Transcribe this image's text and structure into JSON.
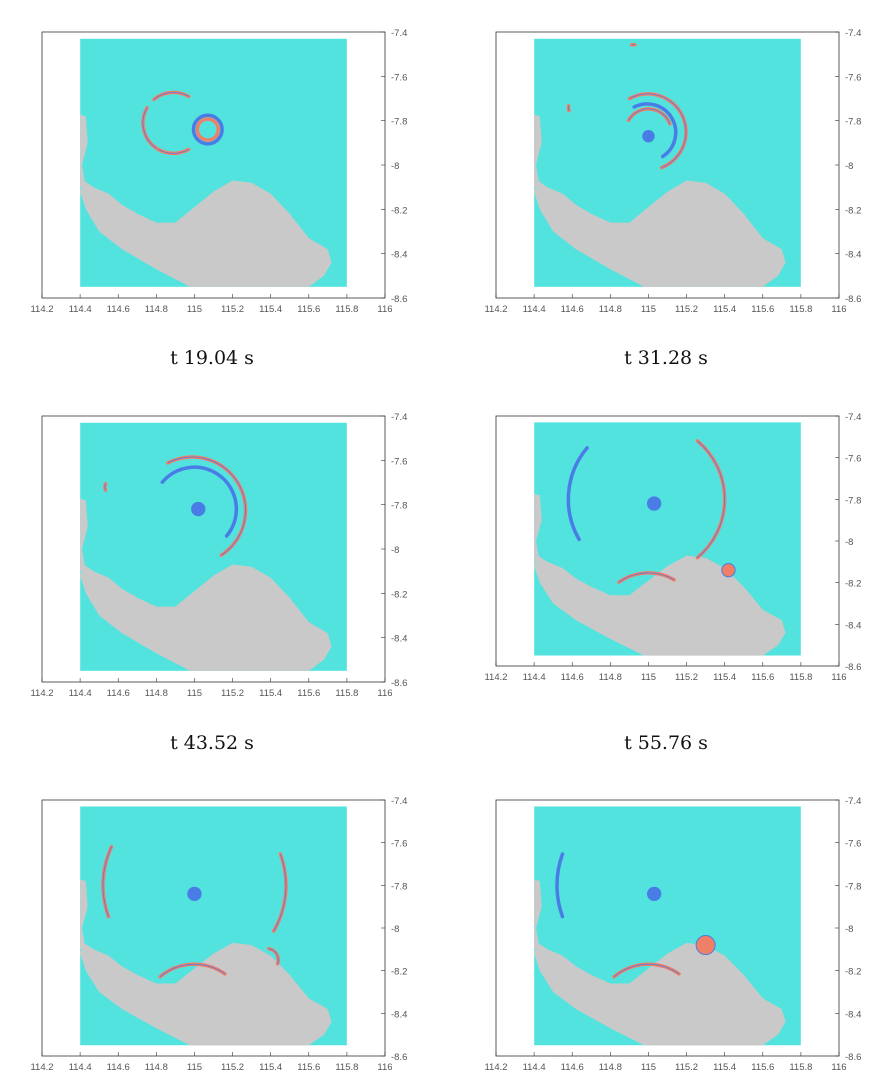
{
  "colors": {
    "sea": "#52e3df",
    "land": "#c9c9c9",
    "positive": "#f07f68",
    "negative": "#4a7ce6",
    "frame": "#333333",
    "tick_text": "#555555"
  },
  "chart_data": [
    {
      "type": "heatmap",
      "title": "",
      "xlabel": "",
      "ylabel": "",
      "x": {
        "ticks": [
          114.2,
          114.4,
          114.6,
          114.8,
          115,
          115.2,
          115.4,
          115.6,
          115.8,
          116
        ],
        "tick_labels": [
          "114.2",
          "114.4",
          "114.6",
          "114.8",
          "115",
          "115.2",
          "115.4",
          "115.6",
          "115.8",
          "116"
        ],
        "range": [
          114.2,
          116
        ]
      },
      "y": {
        "ticks": [
          -7.4,
          -7.6,
          -7.8,
          -8,
          -8.2,
          -8.4,
          -8.6
        ],
        "tick_labels": [
          "-7.4",
          "-7.6",
          "-7.8",
          "-8",
          "-8.2",
          "-8.4",
          "-8.6"
        ],
        "range": [
          -8.6,
          -7.4
        ],
        "axis_side": "right"
      },
      "domain_box": {
        "lon": [
          114.4,
          115.8
        ],
        "lat": [
          -8.55,
          -7.43
        ]
      },
      "features": [
        {
          "kind": "ring",
          "sign": "negative",
          "cx": 115.07,
          "cy": -7.84,
          "r": 0.075
        },
        {
          "kind": "ring",
          "sign": "positive",
          "cx": 115.07,
          "cy": -7.84,
          "r": 0.055
        },
        {
          "kind": "arc",
          "sign": "positive",
          "cx": 114.89,
          "cy": -7.81,
          "r": 0.16,
          "from": 150,
          "to": 240
        },
        {
          "kind": "arc",
          "sign": "positive",
          "cx": 114.89,
          "cy": -7.81,
          "r": 0.16,
          "from": 240,
          "to": 300
        },
        {
          "kind": "arc",
          "sign": "positive",
          "cx": 114.89,
          "cy": -7.81,
          "r": 0.16,
          "from": 60,
          "to": 130
        }
      ],
      "caption": "t  19.04 s"
    },
    {
      "type": "heatmap",
      "x": {
        "ticks": [
          114.2,
          114.4,
          114.6,
          114.8,
          115,
          115.2,
          115.4,
          115.6,
          115.8,
          116
        ],
        "tick_labels": [
          "114.2",
          "114.4",
          "114.6",
          "114.8",
          "115",
          "115.2",
          "115.4",
          "115.6",
          "115.8",
          "116"
        ],
        "range": [
          114.2,
          116
        ]
      },
      "y": {
        "ticks": [
          -7.4,
          -7.6,
          -7.8,
          -8,
          -8.2,
          -8.4,
          -8.6
        ],
        "tick_labels": [
          "-7.4",
          "-7.6",
          "-7.8",
          "-8",
          "-8.2",
          "-8.4",
          "-8.6"
        ],
        "range": [
          -8.6,
          -7.4
        ],
        "axis_side": "right"
      },
      "domain_box": {
        "lon": [
          114.4,
          115.8
        ],
        "lat": [
          -8.55,
          -7.43
        ]
      },
      "features": [
        {
          "kind": "arc",
          "sign": "positive",
          "cx": 115.0,
          "cy": -7.85,
          "r": 0.2,
          "from": -70,
          "to": 120
        },
        {
          "kind": "arc",
          "sign": "negative",
          "cx": 115.0,
          "cy": -7.85,
          "r": 0.15,
          "from": -60,
          "to": 120
        },
        {
          "kind": "arc",
          "sign": "positive",
          "cx": 115.0,
          "cy": -7.85,
          "r": 0.12,
          "from": 20,
          "to": 150
        },
        {
          "kind": "blob",
          "sign": "negative",
          "cx": 115.0,
          "cy": -7.87,
          "r": 0.03
        },
        {
          "kind": "arc",
          "sign": "positive",
          "cx": 114.92,
          "cy": -7.5,
          "r": 0.05,
          "from": 80,
          "to": 100
        },
        {
          "kind": "arc",
          "sign": "positive",
          "cx": 114.63,
          "cy": -7.74,
          "r": 0.05,
          "from": 170,
          "to": 200
        }
      ],
      "caption": "t  31.28 s"
    },
    {
      "type": "heatmap",
      "x": {
        "ticks": [
          114.2,
          114.4,
          114.6,
          114.8,
          115,
          115.2,
          115.4,
          115.6,
          115.8,
          116
        ],
        "tick_labels": [
          "114.2",
          "114.4",
          "114.6",
          "114.8",
          "115",
          "115.2",
          "115.4",
          "115.6",
          "115.8",
          "116"
        ],
        "range": [
          114.2,
          116
        ]
      },
      "y": {
        "ticks": [
          -7.4,
          -7.6,
          -7.8,
          -8,
          -8.2,
          -8.4,
          -8.6
        ],
        "tick_labels": [
          "-7.4",
          "-7.6",
          "-7.8",
          "-8",
          "-8.2",
          "-8.4",
          "-8.6"
        ],
        "range": [
          -8.6,
          -7.4
        ],
        "axis_side": "right"
      },
      "domain_box": {
        "lon": [
          114.4,
          115.8
        ],
        "lat": [
          -8.55,
          -7.43
        ]
      },
      "features": [
        {
          "kind": "arc",
          "sign": "positive",
          "cx": 115.0,
          "cy": -7.82,
          "r": 0.28,
          "from": -60,
          "to": 120
        },
        {
          "kind": "arc",
          "sign": "negative",
          "cx": 115.0,
          "cy": -7.82,
          "r": 0.22,
          "from": -40,
          "to": 140
        },
        {
          "kind": "blob",
          "sign": "negative",
          "cx": 115.02,
          "cy": -7.82,
          "r": 0.035
        },
        {
          "kind": "arc",
          "sign": "positive",
          "cx": 114.58,
          "cy": -7.72,
          "r": 0.05,
          "from": 160,
          "to": 200
        }
      ],
      "caption": "t  43.52 s"
    },
    {
      "type": "heatmap",
      "x": {
        "ticks": [
          114.2,
          114.4,
          114.6,
          114.8,
          115,
          115.2,
          115.4,
          115.6,
          115.8,
          116
        ],
        "tick_labels": [
          "114.2",
          "114.4",
          "114.6",
          "114.8",
          "115",
          "115.2",
          "115.4",
          "115.6",
          "115.8",
          "116"
        ],
        "range": [
          114.2,
          116
        ]
      },
      "y": {
        "ticks": [
          -7.4,
          -7.6,
          -7.8,
          -8,
          -8.2,
          -8.4,
          -8.6
        ],
        "tick_labels": [
          "-7.4",
          "-7.6",
          "-7.8",
          "-8",
          "-8.2",
          "-8.4",
          "-8.6"
        ],
        "range": [
          -8.6,
          -7.4
        ],
        "axis_side": "right"
      },
      "domain_box": {
        "lon": [
          114.4,
          115.8
        ],
        "lat": [
          -8.55,
          -7.43
        ]
      },
      "features": [
        {
          "kind": "arc",
          "sign": "positive",
          "cx": 115.0,
          "cy": -7.8,
          "r": 0.4,
          "from": -50,
          "to": 50
        },
        {
          "kind": "arc",
          "sign": "negative",
          "cx": 115.0,
          "cy": -7.8,
          "r": 0.42,
          "from": 140,
          "to": 210
        },
        {
          "kind": "blob",
          "sign": "negative",
          "cx": 115.03,
          "cy": -7.82,
          "r": 0.035
        },
        {
          "kind": "arc",
          "sign": "positive",
          "cx": 115.0,
          "cy": -8.4,
          "r": 0.27,
          "from": 60,
          "to": 125
        },
        {
          "kind": "blob",
          "sign": "positive",
          "cx": 115.42,
          "cy": -8.14,
          "r": 0.035
        }
      ],
      "caption": "t  55.76 s"
    },
    {
      "type": "heatmap",
      "x": {
        "ticks": [
          114.2,
          114.4,
          114.6,
          114.8,
          115,
          115.2,
          115.4,
          115.6,
          115.8,
          116
        ],
        "tick_labels": [
          "114.2",
          "114.4",
          "114.6",
          "114.8",
          "115",
          "115.2",
          "115.4",
          "115.6",
          "115.8",
          "116"
        ],
        "range": [
          114.2,
          116
        ]
      },
      "y": {
        "ticks": [
          -7.4,
          -7.6,
          -7.8,
          -8,
          -8.2,
          -8.4,
          -8.6
        ],
        "tick_labels": [
          "-7.4",
          "-7.6",
          "-7.8",
          "-8",
          "-8.2",
          "-8.4",
          "-8.6"
        ],
        "range": [
          -8.6,
          -7.4
        ],
        "axis_side": "right"
      },
      "domain_box": {
        "lon": [
          114.4,
          115.8
        ],
        "lat": [
          -8.55,
          -7.43
        ]
      },
      "features": [
        {
          "kind": "arc",
          "sign": "positive",
          "cx": 115.0,
          "cy": -7.8,
          "r": 0.48,
          "from": -30,
          "to": 20
        },
        {
          "kind": "arc",
          "sign": "positive",
          "cx": 115.0,
          "cy": -7.8,
          "r": 0.48,
          "from": 155,
          "to": 200
        },
        {
          "kind": "blob",
          "sign": "negative",
          "cx": 115.0,
          "cy": -7.84,
          "r": 0.035
        },
        {
          "kind": "arc",
          "sign": "positive",
          "cx": 115.0,
          "cy": -8.42,
          "r": 0.28,
          "from": 55,
          "to": 130
        },
        {
          "kind": "arc",
          "sign": "positive",
          "cx": 115.38,
          "cy": -8.15,
          "r": 0.06,
          "from": -20,
          "to": 80
        }
      ],
      "caption": ""
    },
    {
      "type": "heatmap",
      "x": {
        "ticks": [
          114.2,
          114.4,
          114.6,
          114.8,
          115,
          115.2,
          115.4,
          115.6,
          115.8,
          116
        ],
        "tick_labels": [
          "114.2",
          "114.4",
          "114.6",
          "114.8",
          "115",
          "115.2",
          "115.4",
          "115.6",
          "115.8",
          "116"
        ],
        "range": [
          114.2,
          116
        ]
      },
      "y": {
        "ticks": [
          -7.4,
          -7.6,
          -7.8,
          -8,
          -8.2,
          -8.4,
          -8.6
        ],
        "tick_labels": [
          "-7.4",
          "-7.6",
          "-7.8",
          "-8",
          "-8.2",
          "-8.4",
          "-8.6"
        ],
        "range": [
          -8.6,
          -7.4
        ],
        "axis_side": "right"
      },
      "domain_box": {
        "lon": [
          114.4,
          115.8
        ],
        "lat": [
          -8.55,
          -7.43
        ]
      },
      "features": [
        {
          "kind": "arc",
          "sign": "negative",
          "cx": 115.0,
          "cy": -7.8,
          "r": 0.48,
          "from": 160,
          "to": 200
        },
        {
          "kind": "blob",
          "sign": "negative",
          "cx": 115.03,
          "cy": -7.84,
          "r": 0.035
        },
        {
          "kind": "arc",
          "sign": "positive",
          "cx": 115.0,
          "cy": -8.42,
          "r": 0.28,
          "from": 55,
          "to": 130
        },
        {
          "kind": "blob",
          "sign": "positive",
          "cx": 115.3,
          "cy": -8.08,
          "r": 0.05
        }
      ],
      "caption": ""
    }
  ]
}
